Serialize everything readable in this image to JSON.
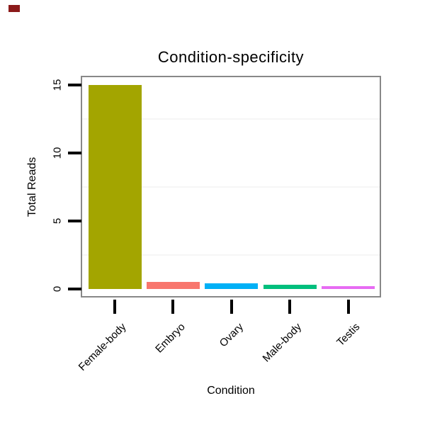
{
  "chart_data": {
    "type": "bar",
    "title": "Condition-specificity",
    "xlabel": "Condition",
    "ylabel": "Total Reads",
    "categories": [
      "Female-body",
      "Embryo",
      "Ovary",
      "Male-body",
      "Testis"
    ],
    "values": [
      15,
      0.5,
      0.4,
      0.3,
      0.2
    ],
    "bar_colors": [
      "#A3A500",
      "#F8766D",
      "#00B0F6",
      "#00BF7D",
      "#E76BF3"
    ],
    "yticks": [
      0,
      5,
      10,
      15
    ],
    "ylim": [
      -0.6,
      15.7
    ],
    "minor_gridlines": [
      2.5,
      7.5,
      12.5
    ],
    "grid": "minor-only",
    "legend": "none"
  },
  "colors": {
    "frame": "#888888",
    "tick": "#000000",
    "grid": "#f6f6f6",
    "text": "#000000",
    "corner_mark": "#8B1A1A"
  }
}
